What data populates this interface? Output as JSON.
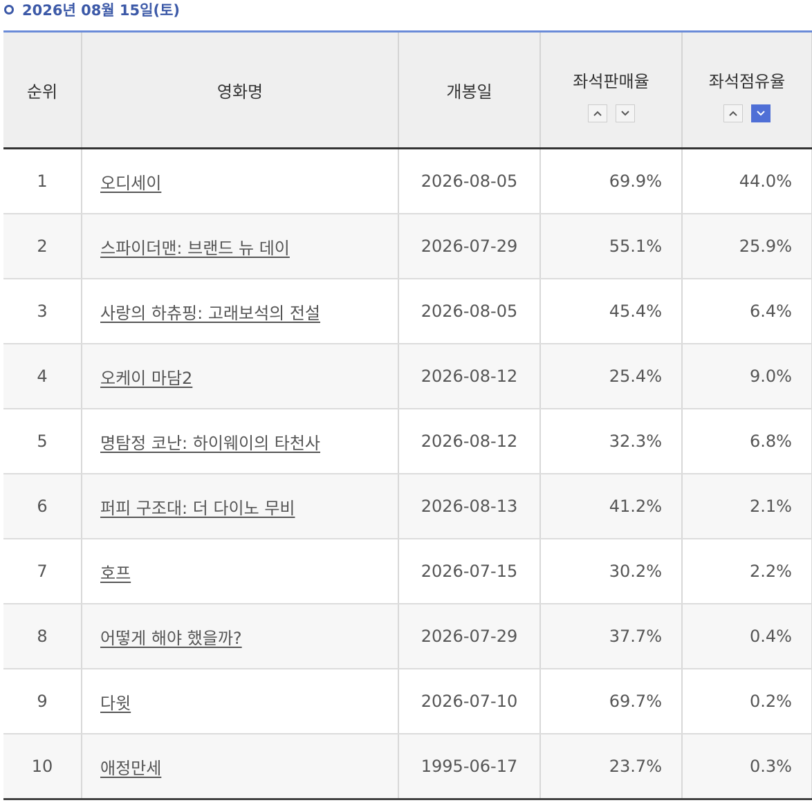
{
  "header": {
    "title": "2026년 08월 15일(토)"
  },
  "table": {
    "headers": [
      "순위",
      "영화명",
      "개봉일",
      "좌석판매율",
      "좌석점유율"
    ],
    "rows": [
      [
        "1",
        "오디세이",
        "2026-08-05",
        "69.9%",
        "44.0%"
      ],
      [
        "2",
        "스파이더맨: 브랜드 뉴 데이",
        "2026-07-29",
        "55.1%",
        "25.9%"
      ],
      [
        "3",
        "사랑의 하츄핑: 고래보석의 전설",
        "2026-08-05",
        "45.4%",
        "6.4%"
      ],
      [
        "4",
        "오케이 마담2",
        "2026-08-12",
        "25.4%",
        "9.0%"
      ],
      [
        "5",
        "명탐정 코난: 하이웨이의 타천사",
        "2026-08-12",
        "32.3%",
        "6.8%"
      ],
      [
        "6",
        "퍼피 구조대: 더 다이노 무비",
        "2026-08-13",
        "41.2%",
        "2.1%"
      ],
      [
        "7",
        "호프",
        "2026-07-15",
        "30.2%",
        "2.2%"
      ],
      [
        "8",
        "어떻게 해야 했을까?",
        "2026-07-29",
        "37.7%",
        "0.4%"
      ],
      [
        "9",
        "다윗",
        "2026-07-10",
        "69.7%",
        "0.2%"
      ],
      [
        "10",
        "애정만세",
        "1995-06-17",
        "23.7%",
        "0.3%"
      ]
    ]
  }
}
